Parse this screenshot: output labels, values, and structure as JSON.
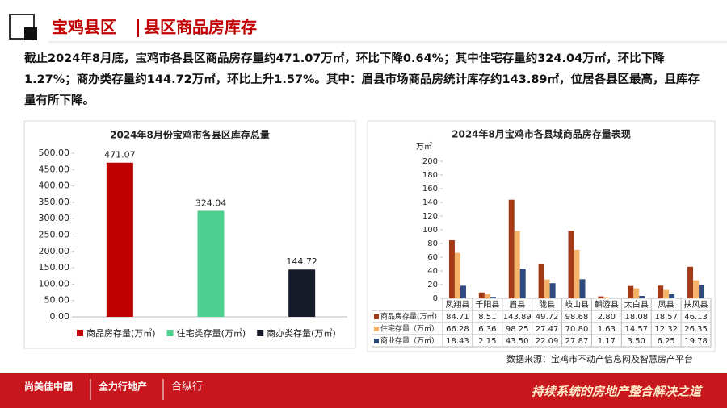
{
  "header": {
    "title_left": "宝鸡县区",
    "title_right": "县区商品房库存"
  },
  "summary": "截止2024年8月底，宝鸡市各县区商品房存量约471.07万㎡，环比下降0.64%；其中住宅存量约324.04万㎡，环比下降1.27%；商办类存量约144.72万㎡，环比上升1.57%。其中：眉县市场商品房统计库存约143.89㎡，位居各县区最高，且库存量有所下降。",
  "chart_data": [
    {
      "type": "bar",
      "title": "2024年8月份宝鸡市各县区库存总量",
      "categories": [
        null
      ],
      "series": [
        {
          "name": "商品房存量(万㎡)",
          "color": "#c00000",
          "values": [
            471.07
          ]
        },
        {
          "name": "住宅类存量(万㎡)",
          "color": "#4ccf8f",
          "values": [
            324.04
          ]
        },
        {
          "name": "商办类存量(万㎡)",
          "color": "#161b2a",
          "values": [
            144.72
          ]
        }
      ],
      "ylim": [
        0,
        500
      ],
      "yticks": [
        {
          "value": 0,
          "label": "0.00"
        },
        {
          "value": 50,
          "label": "50.00"
        },
        {
          "value": 100,
          "label": "100.00"
        },
        {
          "value": 150,
          "label": "150.00"
        },
        {
          "value": 200,
          "label": "200.00"
        },
        {
          "value": 250,
          "label": "250.00"
        },
        {
          "value": 300,
          "label": "300.00"
        },
        {
          "value": 350,
          "label": "350.00"
        },
        {
          "value": 400,
          "label": "400.00"
        },
        {
          "value": 450,
          "label": "450.00"
        },
        {
          "value": 500,
          "label": "500.00"
        }
      ],
      "grid": false,
      "legend": "bottom"
    },
    {
      "type": "bar",
      "title": "2024年8月宝鸡市各县域商品房存量表现",
      "ylabel": "万㎡",
      "categories": [
        "凤翔县",
        "千阳县",
        "眉县",
        "陇县",
        "岐山县",
        "麟游县",
        "太白县",
        "凤县",
        "扶风县"
      ],
      "series": [
        {
          "name": "商品房存量(万㎡)",
          "color": "#a33a17",
          "values": [
            84.71,
            8.51,
            143.89,
            49.72,
            98.68,
            2.8,
            18.08,
            18.57,
            46.13
          ],
          "value_labels": [
            "84.71",
            "8.51",
            "143.89",
            "49.72",
            "98.68",
            "2.80",
            "18.08",
            "18.57",
            "46.13"
          ]
        },
        {
          "name": "住宅存量（万㎡）",
          "color": "#f5b26b",
          "values": [
            66.28,
            6.36,
            98.25,
            27.47,
            70.8,
            1.63,
            14.57,
            12.32,
            26.35
          ],
          "value_labels": [
            "66.28",
            "6.36",
            "98.25",
            "27.47",
            "70.80",
            "1.63",
            "14.57",
            "12.32",
            "26.35"
          ]
        },
        {
          "name": "商业存量（万㎡）",
          "color": "#2f4b7c",
          "values": [
            18.43,
            2.15,
            43.5,
            22.09,
            27.87,
            1.17,
            3.5,
            6.25,
            19.78
          ],
          "value_labels": [
            "18.43",
            "2.15",
            "43.50",
            "22.09",
            "27.87",
            "1.17",
            "3.50",
            "6.25",
            "19.78"
          ]
        }
      ],
      "ylim": [
        0,
        200
      ],
      "yticks": [
        0,
        20,
        40,
        60,
        80,
        100,
        120,
        140,
        160,
        180,
        200
      ],
      "grid": false,
      "legend": "table"
    }
  ],
  "source": "数据来源：宝鸡市不动产信息网及智慧房产平台",
  "footer": {
    "logo1": "尚美佳中國",
    "logo2": "全力行地产",
    "logo3": "合纵行",
    "slogan": "持续系统的房地产整合解决之道"
  }
}
